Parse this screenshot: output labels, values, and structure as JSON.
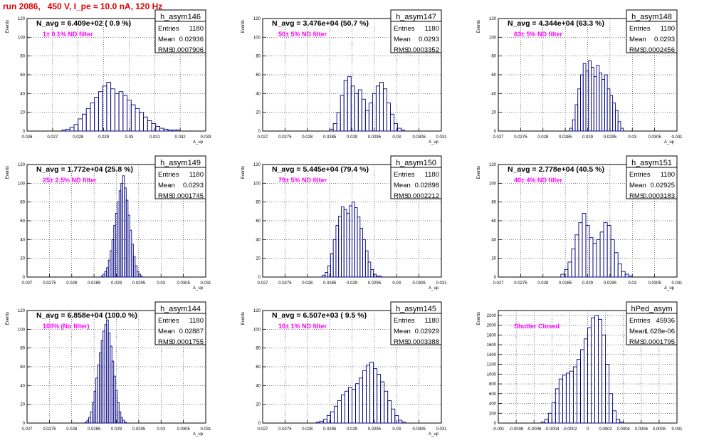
{
  "run_title": "run 2086,   450 V, I_pe ≈ 10.0 nA, 120 Hz",
  "colors": {
    "title": "#e00000",
    "hist": "#000080",
    "annotation": "#ff00ff",
    "grid": "#000000"
  },
  "chart_data": [
    {
      "type": "histogram",
      "hist_name": "h_asym146",
      "title": "N_avg = 6.409e+02 ( 0.9 %)",
      "annotation": "1± 0.1% ND filter",
      "stats": {
        "entries": "1180",
        "mean": "0.02936",
        "rms": "0.0007906"
      },
      "stat_labels": [
        "Entries",
        "Mean",
        "RMS"
      ],
      "ylabel": "Events",
      "xlabel": "A_up",
      "grid": true,
      "legend": "top-right",
      "xlim": [
        0.026,
        0.033
      ],
      "ylim": [
        0,
        120
      ],
      "xticks": [
        0.026,
        0.027,
        0.028,
        0.029,
        0.03,
        0.031,
        0.032,
        0.033
      ],
      "xtick_labels": [
        "0.026",
        "0.027",
        "0.028",
        "0.029",
        "0.03",
        "0.031",
        "0.032",
        "0.033"
      ],
      "yticks": [
        0,
        20,
        40,
        60,
        80,
        100,
        120
      ],
      "ytick_labels": [
        "0",
        "20",
        "40",
        "60",
        "80",
        "100",
        "120"
      ],
      "bins": {
        "edges": [
          0.02736,
          0.02752,
          0.02768,
          0.02784,
          0.028,
          0.02816,
          0.02832,
          0.02848,
          0.02864,
          0.0288,
          0.02896,
          0.02912,
          0.02928,
          0.02944,
          0.0296,
          0.02976,
          0.02992,
          0.03008,
          0.03024,
          0.0304,
          0.03056,
          0.03072,
          0.03088,
          0.03104,
          0.0312,
          0.03136,
          0.03152,
          0.03168,
          0.03184,
          0.032
        ],
        "counts": [
          1,
          2,
          4,
          7,
          13,
          18,
          24,
          30,
          36,
          42,
          48,
          52,
          45,
          40,
          42,
          38,
          33,
          28,
          24,
          20,
          15,
          11,
          8,
          5,
          3,
          2,
          1,
          1,
          1
        ]
      }
    },
    {
      "type": "histogram",
      "hist_name": "h_asym147",
      "title": "N_avg = 3.476e+04 (50.7 %)",
      "annotation": "50± 5% ND filter",
      "stats": {
        "entries": "1180",
        "mean": "0.0293",
        "rms": "0.0003352"
      },
      "stat_labels": [
        "Entries",
        "Mean",
        "RMS"
      ],
      "ylabel": "Events",
      "xlabel": "A_up",
      "grid": true,
      "legend": "top-right",
      "xlim": [
        0.027,
        0.031
      ],
      "ylim": [
        0,
        120
      ],
      "xticks": [
        0.027,
        0.0275,
        0.028,
        0.0285,
        0.029,
        0.0295,
        0.03,
        0.0305,
        0.031
      ],
      "xtick_labels": [
        "0.027",
        "0.0275",
        "0.028",
        "0.0285",
        "0.029",
        "0.0295",
        "0.03",
        "0.0305",
        "0.031"
      ],
      "yticks": [
        0,
        20,
        40,
        60,
        80,
        100,
        120
      ],
      "ytick_labels": [
        "0",
        "20",
        "40",
        "60",
        "80",
        "100",
        "120"
      ],
      "bins": {
        "edges": [
          0.0285,
          0.02858,
          0.02866,
          0.02874,
          0.02882,
          0.0289,
          0.02898,
          0.02906,
          0.02914,
          0.02922,
          0.0293,
          0.02938,
          0.02946,
          0.02954,
          0.02962,
          0.0297,
          0.02978,
          0.02986,
          0.02994,
          0.03002,
          0.0301,
          0.03018
        ],
        "counts": [
          2,
          8,
          20,
          38,
          54,
          58,
          48,
          40,
          44,
          34,
          22,
          30,
          40,
          48,
          52,
          45,
          30,
          18,
          8,
          3,
          1
        ]
      }
    },
    {
      "type": "histogram",
      "hist_name": "h_asym148",
      "title": "N_avg = 4.344e+04 (63.3 %)",
      "annotation": "63± 5% ND filter",
      "stats": {
        "entries": "1180",
        "mean": "0.0293",
        "rms": "0.0002456"
      },
      "stat_labels": [
        "Entries",
        "Mean",
        "RMS"
      ],
      "ylabel": "Events",
      "xlabel": "A_up",
      "grid": true,
      "legend": "top-right",
      "xlim": [
        0.027,
        0.031
      ],
      "ylim": [
        0,
        120
      ],
      "xticks": [
        0.027,
        0.0275,
        0.028,
        0.0285,
        0.029,
        0.0295,
        0.03,
        0.0305,
        0.031
      ],
      "xtick_labels": [
        "0.027",
        "0.0275",
        "0.028",
        "0.0285",
        "0.029",
        "0.0295",
        "0.03",
        "0.0305",
        "0.031"
      ],
      "yticks": [
        0,
        20,
        40,
        60,
        80,
        100,
        120
      ],
      "ytick_labels": [
        "0",
        "20",
        "40",
        "60",
        "80",
        "100",
        "120"
      ],
      "bins": {
        "edges": [
          0.0286,
          0.02866,
          0.02872,
          0.02878,
          0.02884,
          0.0289,
          0.02896,
          0.02902,
          0.02908,
          0.02914,
          0.0292,
          0.02926,
          0.02932,
          0.02938,
          0.02944,
          0.0295,
          0.02956,
          0.02962,
          0.02968,
          0.02974,
          0.0298
        ],
        "counts": [
          3,
          12,
          28,
          45,
          60,
          72,
          64,
          75,
          68,
          58,
          70,
          62,
          55,
          60,
          45,
          38,
          30,
          22,
          10,
          3
        ]
      }
    },
    {
      "type": "histogram",
      "hist_name": "h_asym149",
      "title": "N_avg = 1.772e+04 (25.8 %)",
      "annotation": "25± 2.5% ND filter",
      "stats": {
        "entries": "1180",
        "mean": "0.0293",
        "rms": "0.0001745"
      },
      "stat_labels": [
        "Entries",
        "Mean",
        "RMS"
      ],
      "ylabel": "Events",
      "xlabel": "A_up",
      "grid": true,
      "legend": "top-right",
      "xlim": [
        0.027,
        0.031
      ],
      "ylim": [
        0,
        120
      ],
      "xticks": [
        0.027,
        0.0275,
        0.028,
        0.0285,
        0.029,
        0.0295,
        0.03,
        0.0305,
        0.031
      ],
      "xtick_labels": [
        "0.027",
        "0.0275",
        "0.028",
        "0.0285",
        "0.029",
        "0.0295",
        "0.03",
        "0.0305",
        "0.031"
      ],
      "yticks": [
        0,
        20,
        40,
        60,
        80,
        100,
        120
      ],
      "ytick_labels": [
        "0",
        "20",
        "40",
        "60",
        "80",
        "100",
        "120"
      ],
      "bins": {
        "edges": [
          0.02866,
          0.0287,
          0.02874,
          0.02878,
          0.02882,
          0.02886,
          0.0289,
          0.02894,
          0.02898,
          0.02902,
          0.02906,
          0.0291,
          0.02914,
          0.02918,
          0.02922,
          0.02926,
          0.0293,
          0.02934,
          0.02938,
          0.02942,
          0.02946,
          0.0295,
          0.02954,
          0.02958
        ],
        "counts": [
          1,
          3,
          6,
          10,
          18,
          28,
          40,
          55,
          68,
          80,
          92,
          100,
          108,
          95,
          82,
          66,
          50,
          35,
          22,
          12,
          6,
          3,
          1
        ]
      }
    },
    {
      "type": "histogram",
      "hist_name": "h_asym150",
      "title": "N_avg = 5.445e+04 (79.4 %)",
      "annotation": "79± 5% ND filter",
      "stats": {
        "entries": "1180",
        "mean": "0.02898",
        "rms": "0.0002212"
      },
      "stat_labels": [
        "Entries",
        "Mean",
        "RMS"
      ],
      "ylabel": "Events",
      "xlabel": "A_up",
      "grid": true,
      "legend": "top-right",
      "xlim": [
        0.027,
        0.031
      ],
      "ylim": [
        0,
        120
      ],
      "xticks": [
        0.027,
        0.0275,
        0.028,
        0.0285,
        0.029,
        0.0295,
        0.03,
        0.0305,
        0.031
      ],
      "xtick_labels": [
        "0.027",
        "0.0275",
        "0.028",
        "0.0285",
        "0.029",
        "0.0295",
        "0.03",
        "0.0305",
        "0.031"
      ],
      "yticks": [
        0,
        20,
        40,
        60,
        80,
        100,
        120
      ],
      "ytick_labels": [
        "0",
        "20",
        "40",
        "60",
        "80",
        "100",
        "120"
      ],
      "bins": {
        "edges": [
          0.02834,
          0.0284,
          0.02846,
          0.02852,
          0.02858,
          0.02864,
          0.0287,
          0.02876,
          0.02882,
          0.02888,
          0.02894,
          0.029,
          0.02906,
          0.02912,
          0.02918,
          0.02924,
          0.0293,
          0.02936,
          0.02942,
          0.02948,
          0.02954,
          0.0296,
          0.02966
        ],
        "counts": [
          2,
          5,
          12,
          25,
          40,
          55,
          65,
          75,
          72,
          68,
          76,
          80,
          74,
          64,
          52,
          40,
          28,
          16,
          8,
          3,
          1,
          1
        ]
      }
    },
    {
      "type": "histogram",
      "hist_name": "h_asym151",
      "title": "N_avg = 2.778e+04 (40.5 %)",
      "annotation": "40± 4% ND filter",
      "stats": {
        "entries": "1180",
        "mean": "0.02925",
        "rms": "0.0003183"
      },
      "stat_labels": [
        "Entries",
        "Mean",
        "RMS"
      ],
      "ylabel": "Events",
      "xlabel": "A_up",
      "grid": true,
      "legend": "top-right",
      "xlim": [
        0.027,
        0.031
      ],
      "ylim": [
        0,
        120
      ],
      "xticks": [
        0.027,
        0.0275,
        0.028,
        0.0285,
        0.029,
        0.0295,
        0.03,
        0.0305,
        0.031
      ],
      "xtick_labels": [
        "0.027",
        "0.0275",
        "0.028",
        "0.0285",
        "0.029",
        "0.0295",
        "0.03",
        "0.0305",
        "0.031"
      ],
      "yticks": [
        0,
        20,
        40,
        60,
        80,
        100,
        120
      ],
      "ytick_labels": [
        "0",
        "20",
        "40",
        "60",
        "80",
        "100",
        "120"
      ],
      "bins": {
        "edges": [
          0.0284,
          0.02848,
          0.02856,
          0.02864,
          0.02872,
          0.0288,
          0.02888,
          0.02896,
          0.02904,
          0.02912,
          0.0292,
          0.02928,
          0.02936,
          0.02944,
          0.02952,
          0.0296,
          0.02968,
          0.02976,
          0.02984,
          0.02992,
          0.03
        ],
        "counts": [
          3,
          8,
          16,
          30,
          45,
          58,
          68,
          55,
          42,
          36,
          40,
          48,
          58,
          55,
          40,
          26,
          14,
          6,
          3,
          1
        ]
      }
    },
    {
      "type": "histogram",
      "hist_name": "h_asym144",
      "title": "N_avg = 6.858e+04 (100.0 %)",
      "annotation": "100% (No filter)",
      "stats": {
        "entries": "1180",
        "mean": "0.02887",
        "rms": "0.0001755"
      },
      "stat_labels": [
        "Entries",
        "Mean",
        "RMS"
      ],
      "ylabel": "Events",
      "xlabel": "A_up",
      "grid": true,
      "legend": "top-right",
      "xlim": [
        0.027,
        0.031
      ],
      "ylim": [
        0,
        120
      ],
      "xticks": [
        0.027,
        0.0275,
        0.028,
        0.0285,
        0.029,
        0.0295,
        0.03,
        0.0305,
        0.031
      ],
      "xtick_labels": [
        "0.027",
        "0.0275",
        "0.028",
        "0.0285",
        "0.029",
        "0.0295",
        "0.03",
        "0.0305",
        "0.031"
      ],
      "yticks": [
        0,
        20,
        40,
        60,
        80,
        100,
        120
      ],
      "ytick_labels": [
        "0",
        "20",
        "40",
        "60",
        "80",
        "100",
        "120"
      ],
      "bins": {
        "edges": [
          0.0283,
          0.02834,
          0.02838,
          0.02842,
          0.02846,
          0.0285,
          0.02854,
          0.02858,
          0.02862,
          0.02866,
          0.0287,
          0.02874,
          0.02878,
          0.02882,
          0.02886,
          0.0289,
          0.02894,
          0.02898,
          0.02902,
          0.02906,
          0.0291,
          0.02914,
          0.02918,
          0.02922
        ],
        "counts": [
          1,
          3,
          6,
          12,
          22,
          34,
          48,
          62,
          75,
          88,
          98,
          105,
          110,
          96,
          82,
          66,
          50,
          35,
          22,
          12,
          6,
          3,
          1
        ]
      }
    },
    {
      "type": "histogram",
      "hist_name": "h_asym145",
      "title": "N_avg = 6.507e+03 ( 9.5 %)",
      "annotation": "10± 1% ND filter",
      "stats": {
        "entries": "1180",
        "mean": "0.02929",
        "rms": "0.0003388"
      },
      "stat_labels": [
        "Entries",
        "Mean",
        "RMS"
      ],
      "ylabel": "Events",
      "xlabel": "A_up",
      "grid": true,
      "legend": "top-right",
      "xlim": [
        0.027,
        0.031
      ],
      "ylim": [
        0,
        120
      ],
      "xticks": [
        0.027,
        0.0275,
        0.028,
        0.0285,
        0.029,
        0.0295,
        0.03,
        0.0305,
        0.031
      ],
      "xtick_labels": [
        "0.027",
        "0.0275",
        "0.028",
        "0.0285",
        "0.029",
        "0.0295",
        "0.03",
        "0.0305",
        "0.031"
      ],
      "yticks": [
        0,
        20,
        40,
        60,
        80,
        100,
        120
      ],
      "ytick_labels": [
        "0",
        "20",
        "40",
        "60",
        "80",
        "100",
        "120"
      ],
      "bins": {
        "edges": [
          0.0282,
          0.02828,
          0.02836,
          0.02844,
          0.02852,
          0.0286,
          0.02868,
          0.02876,
          0.02884,
          0.02892,
          0.029,
          0.02908,
          0.02916,
          0.02924,
          0.02932,
          0.0294,
          0.02948,
          0.02956,
          0.02964,
          0.02972,
          0.0298,
          0.02988,
          0.02996,
          0.03004,
          0.03012,
          0.0302
        ],
        "counts": [
          1,
          2,
          4,
          8,
          12,
          18,
          24,
          30,
          34,
          38,
          36,
          42,
          48,
          56,
          62,
          65,
          58,
          52,
          44,
          34,
          24,
          15,
          8,
          3,
          1
        ]
      }
    },
    {
      "type": "histogram",
      "hist_name": "hPed_asym",
      "title": "",
      "annotation": "Shutter Closed",
      "stats": {
        "entries": "45936",
        "mean": "1.628e-06",
        "rms": "0.0001795"
      },
      "stat_labels": [
        "Entries",
        "Mean",
        "RMS"
      ],
      "ylabel": "Events",
      "xlabel": "",
      "grid": true,
      "legend": "top-right",
      "xlim": [
        -0.001,
        0.001
      ],
      "ylim": [
        0,
        2300
      ],
      "xticks": [
        -0.001,
        -0.0008,
        -0.0006,
        -0.0004,
        -0.0002,
        0,
        0.0002,
        0.0004,
        0.0006,
        0.0008,
        0.001
      ],
      "xtick_labels": [
        "-0.001",
        "-0.0008",
        "-0.0006",
        "-0.0004",
        "-0.0002",
        "0",
        "0.0002",
        "0.0004",
        "0.0006",
        "0.0008",
        "0.001"
      ],
      "yticks": [
        0,
        200,
        400,
        600,
        800,
        1000,
        1200,
        1400,
        1600,
        1800,
        2000,
        2200
      ],
      "ytick_labels": [
        "0",
        "200",
        "400",
        "600",
        "800",
        "1000",
        "1200",
        "1400",
        "1600",
        "1800",
        "2000",
        "2200"
      ],
      "bins": {
        "edges": [
          -0.00052,
          -0.00048,
          -0.00044,
          -0.0004,
          -0.00036,
          -0.00032,
          -0.00028,
          -0.00024,
          -0.0002,
          -0.00016,
          -0.00012,
          -8e-05,
          -4e-05,
          0,
          4e-05,
          8e-05,
          0.00012,
          0.00016,
          0.0002,
          0.00024,
          0.00028,
          0.00032,
          0.00036,
          0.0004
        ],
        "counts": [
          20,
          80,
          200,
          420,
          700,
          900,
          980,
          1020,
          1060,
          1150,
          1300,
          1500,
          1720,
          1950,
          2150,
          2200,
          2120,
          1800,
          1200,
          600,
          250,
          80,
          20
        ]
      }
    }
  ]
}
